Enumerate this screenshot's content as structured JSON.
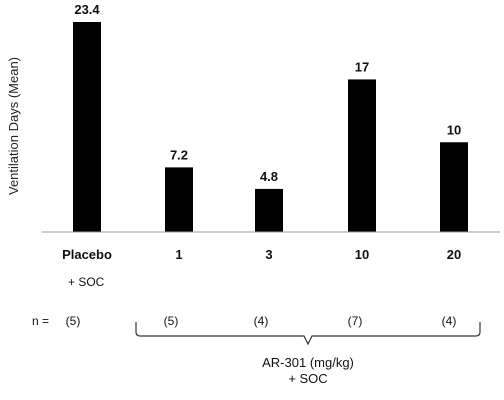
{
  "chart_data": {
    "type": "bar",
    "ylabel": "Ventilation Days (Mean)",
    "ylim": [
      0,
      23.4
    ],
    "grid": false,
    "categories": [
      "Placebo",
      "1",
      "3",
      "10",
      "20"
    ],
    "values": [
      23.4,
      7.2,
      4.8,
      17,
      10
    ],
    "value_labels": [
      "23.4",
      "7.2",
      "4.8",
      "17",
      "10"
    ],
    "bar_color": "#000000"
  },
  "annotations": {
    "placebo_sublabel": "+ SOC",
    "n_label": "n =",
    "n_values": [
      "(5)",
      "(5)",
      "(4)",
      "(7)",
      "(4)"
    ],
    "group_label_line1": "AR-301 (mg/kg)",
    "group_label_line2": "+ SOC"
  }
}
